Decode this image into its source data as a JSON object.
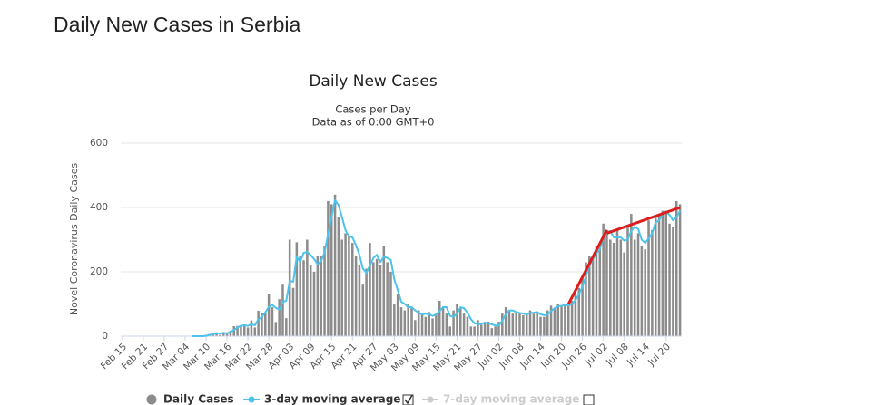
{
  "page_title": "Daily New Cases in Serbia",
  "chart_data": {
    "type": "bar",
    "title": "Daily New Cases",
    "subtitle": "Cases per Day",
    "note": "Data as of 0:00 GMT+0",
    "y_label": "Novel Coronavirus Daily Cases",
    "categories": [
      "Feb 15",
      null,
      null,
      null,
      null,
      null,
      "Feb 21",
      null,
      null,
      null,
      null,
      null,
      "Feb 27",
      null,
      null,
      null,
      null,
      null,
      "Mar 04",
      null,
      null,
      null,
      null,
      null,
      "Mar 10",
      null,
      null,
      null,
      null,
      null,
      "Mar 16",
      null,
      null,
      null,
      null,
      null,
      "Mar 22",
      null,
      null,
      null,
      null,
      null,
      "Mar 28",
      null,
      null,
      null,
      null,
      null,
      "Apr 03",
      null,
      null,
      null,
      null,
      null,
      "Apr 09",
      null,
      null,
      null,
      null,
      null,
      "Apr 15",
      null,
      null,
      null,
      null,
      null,
      "Apr 21",
      null,
      null,
      null,
      null,
      null,
      "Apr 27",
      null,
      null,
      null,
      null,
      null,
      "May 03",
      null,
      null,
      null,
      null,
      null,
      "May 09",
      null,
      null,
      null,
      null,
      null,
      "May 15",
      null,
      null,
      null,
      null,
      null,
      "May 21",
      null,
      null,
      null,
      null,
      null,
      "May 27",
      null,
      null,
      null,
      null,
      null,
      "Jun 02",
      null,
      null,
      null,
      null,
      null,
      "Jun 08",
      null,
      null,
      null,
      null,
      null,
      "Jun 14",
      null,
      null,
      null,
      null,
      null,
      "Jun 20",
      null,
      null,
      null,
      null,
      null,
      "Jun 26",
      null,
      null,
      null,
      null,
      null,
      "Jul 02",
      null,
      null,
      null,
      null,
      null,
      "Jul 08",
      null,
      null,
      null,
      null,
      null,
      "Jul 14",
      null,
      null,
      null,
      null,
      null,
      "Jul 20",
      null,
      null,
      null,
      null
    ],
    "series": [
      {
        "name": "Daily Cases",
        "color": "#8c8c8c",
        "values": [
          0,
          0,
          0,
          0,
          0,
          0,
          0,
          0,
          0,
          0,
          0,
          0,
          0,
          0,
          0,
          0,
          0,
          0,
          0,
          0,
          1,
          0,
          0,
          0,
          4,
          7,
          7,
          12,
          4,
          13,
          9,
          17,
          31,
          32,
          34,
          36,
          27,
          49,
          27,
          79,
          73,
          71,
          130,
          90,
          44,
          115,
          160,
          56,
          300,
          150,
          292,
          250,
          236,
          300,
          220,
          200,
          250,
          250,
          280,
          420,
          410,
          440,
          370,
          300,
          320,
          310,
          290,
          250,
          220,
          160,
          210,
          290,
          230,
          240,
          220,
          280,
          230,
          200,
          100,
          130,
          90,
          80,
          100,
          90,
          50,
          80,
          70,
          60,
          75,
          55,
          70,
          110,
          90,
          70,
          30,
          80,
          100,
          90,
          70,
          60,
          30,
          30,
          50,
          35,
          40,
          45,
          25,
          30,
          45,
          70,
          90,
          80,
          70,
          75,
          70,
          65,
          70,
          80,
          70,
          75,
          60,
          60,
          80,
          95,
          85,
          100,
          96,
          96,
          95,
          110,
          130,
          150,
          180,
          230,
          250,
          240,
          280,
          290,
          350,
          330,
          300,
          290,
          330,
          300,
          260,
          340,
          380,
          300,
          320,
          280,
          270,
          360,
          330,
          370,
          380,
          390,
          390,
          350,
          340,
          420,
          410
        ]
      },
      {
        "name": "3-day moving average",
        "color": "#4cc3ea",
        "values": [
          null,
          null,
          null,
          null,
          null,
          null,
          null,
          null,
          null,
          null,
          null,
          null,
          null,
          null,
          null,
          null,
          null,
          null,
          null,
          null,
          0,
          0,
          0,
          0,
          1,
          4,
          6,
          9,
          8,
          10,
          9,
          13,
          19,
          27,
          32,
          34,
          32,
          37,
          34,
          52,
          60,
          74,
          91,
          97,
          88,
          83,
          106,
          110,
          172,
          169,
          247,
          231,
          259,
          262,
          252,
          240,
          223,
          233,
          260,
          317,
          370,
          423,
          407,
          370,
          330,
          310,
          307,
          283,
          253,
          210,
          197,
          220,
          243,
          253,
          230,
          247,
          243,
          237,
          177,
          143,
          107,
          100,
          90,
          90,
          80,
          73,
          67,
          70,
          68,
          63,
          67,
          78,
          90,
          90,
          63,
          60,
          70,
          90,
          87,
          73,
          53,
          40,
          37,
          38,
          42,
          40,
          37,
          33,
          33,
          48,
          68,
          80,
          80,
          75,
          72,
          70,
          68,
          72,
          73,
          75,
          68,
          65,
          67,
          78,
          87,
          93,
          94,
          97,
          96,
          100,
          112,
          130,
          153,
          187,
          220,
          240,
          257,
          270,
          307,
          323,
          327,
          307,
          307,
          307,
          297,
          300,
          327,
          340,
          333,
          300,
          290,
          303,
          320,
          353,
          360,
          380,
          387,
          377,
          360,
          370,
          390
        ]
      }
    ],
    "hidden_series": {
      "name": "7-day moving average"
    },
    "trend_lines": {
      "color": "#dd1c1c",
      "lines": [
        {
          "x": [
            128,
            139
          ],
          "y": [
            100,
            330
          ]
        },
        {
          "x": [
            139,
            160
          ],
          "y": [
            320,
            400
          ]
        }
      ]
    },
    "ylim": [
      0,
      600
    ],
    "yticks": [
      0,
      200,
      400,
      600
    ],
    "grid": true
  }
}
